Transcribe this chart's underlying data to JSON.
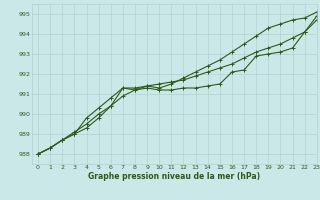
{
  "bg_color": "#cbe8e8",
  "grid_color": "#b0d0d0",
  "line_color": "#2d5a1b",
  "xlabel": "Graphe pression niveau de la mer (hPa)",
  "ylim": [
    987.5,
    995.5
  ],
  "xlim": [
    -0.5,
    23
  ],
  "yticks": [
    988,
    989,
    990,
    991,
    992,
    993,
    994,
    995
  ],
  "xticks": [
    0,
    1,
    2,
    3,
    4,
    5,
    6,
    7,
    8,
    9,
    10,
    11,
    12,
    13,
    14,
    15,
    16,
    17,
    18,
    19,
    20,
    21,
    22,
    23
  ],
  "line1": [
    988.0,
    988.3,
    988.7,
    989.0,
    989.3,
    989.8,
    990.4,
    991.3,
    991.2,
    991.3,
    991.2,
    991.2,
    991.3,
    991.3,
    991.4,
    991.5,
    992.1,
    992.2,
    992.9,
    993.0,
    993.1,
    993.3,
    994.1,
    994.7
  ],
  "line2": [
    988.0,
    988.3,
    988.7,
    989.0,
    989.8,
    990.3,
    990.8,
    991.3,
    991.3,
    991.4,
    991.3,
    991.5,
    991.8,
    992.1,
    992.4,
    992.7,
    993.1,
    993.5,
    993.9,
    994.3,
    994.5,
    994.7,
    994.8,
    995.1
  ],
  "line3": [
    988.0,
    988.3,
    988.7,
    989.1,
    989.5,
    990.0,
    990.4,
    990.9,
    991.2,
    991.4,
    991.5,
    991.6,
    991.7,
    991.9,
    992.1,
    992.3,
    992.5,
    992.8,
    993.1,
    993.3,
    993.5,
    993.8,
    994.1,
    994.9
  ]
}
